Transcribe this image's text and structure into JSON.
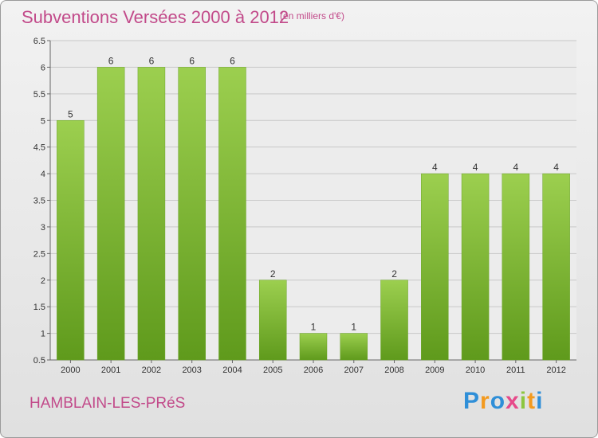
{
  "chart_data": {
    "type": "bar",
    "title": "Subventions Versées 2000 à 2012",
    "subtitle": "(en milliers d'€)",
    "categories": [
      "2000",
      "2001",
      "2002",
      "2003",
      "2004",
      "2005",
      "2006",
      "2007",
      "2008",
      "2009",
      "2010",
      "2011",
      "2012"
    ],
    "values": [
      5,
      6,
      6,
      6,
      6,
      2,
      1,
      1,
      2,
      4,
      4,
      4,
      4
    ],
    "data_labels": [
      "5",
      "6",
      "6",
      "6",
      "6",
      "2",
      "1",
      "1",
      "2",
      "4",
      "4",
      "4",
      "4"
    ],
    "ylim": [
      0.5,
      6.5
    ],
    "yticks": [
      "0.5",
      "1",
      "1.5",
      "2",
      "2.5",
      "3",
      "3.5",
      "4",
      "4.5",
      "5",
      "5.5",
      "6",
      "6.5"
    ],
    "grid": true,
    "bar_color": "#7cb52f",
    "title_color": "#c24a8a"
  },
  "footer": {
    "commune": "HAMBLAIN-LES-PRéS",
    "logo_letters": [
      "P",
      "r",
      "o",
      "x",
      "i",
      "t",
      "i"
    ],
    "logo_colors": [
      "#2f8fd8",
      "#f39a1e",
      "#2f8fd8",
      "#e64a8a",
      "#8cc63f",
      "#f39a1e",
      "#2f8fd8"
    ]
  }
}
